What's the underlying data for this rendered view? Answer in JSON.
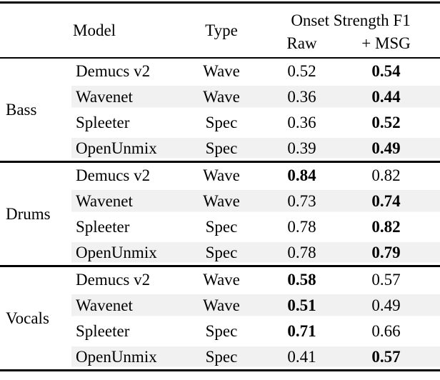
{
  "table": {
    "headers": {
      "model": "Model",
      "type": "Type",
      "group": "Onset Strength F1",
      "raw": "Raw",
      "msg": "+ MSG"
    },
    "sections": [
      {
        "label": "Bass",
        "rows": [
          {
            "model": "Demucs v2",
            "type": "Wave",
            "raw": "0.52",
            "raw_bold": false,
            "msg": "0.54",
            "msg_bold": true,
            "shaded": false
          },
          {
            "model": "Wavenet",
            "type": "Wave",
            "raw": "0.36",
            "raw_bold": false,
            "msg": "0.44",
            "msg_bold": true,
            "shaded": true
          },
          {
            "model": "Spleeter",
            "type": "Spec",
            "raw": "0.36",
            "raw_bold": false,
            "msg": "0.52",
            "msg_bold": true,
            "shaded": false
          },
          {
            "model": "OpenUnmix",
            "type": "Spec",
            "raw": "0.39",
            "raw_bold": false,
            "msg": "0.49",
            "msg_bold": true,
            "shaded": true
          }
        ]
      },
      {
        "label": "Drums",
        "rows": [
          {
            "model": "Demucs v2",
            "type": "Wave",
            "raw": "0.84",
            "raw_bold": true,
            "msg": "0.82",
            "msg_bold": false,
            "shaded": false
          },
          {
            "model": "Wavenet",
            "type": "Wave",
            "raw": "0.73",
            "raw_bold": false,
            "msg": "0.74",
            "msg_bold": true,
            "shaded": true
          },
          {
            "model": "Spleeter",
            "type": "Spec",
            "raw": "0.78",
            "raw_bold": false,
            "msg": "0.82",
            "msg_bold": true,
            "shaded": false
          },
          {
            "model": "OpenUnmix",
            "type": "Spec",
            "raw": "0.78",
            "raw_bold": false,
            "msg": "0.79",
            "msg_bold": true,
            "shaded": true
          }
        ]
      },
      {
        "label": "Vocals",
        "rows": [
          {
            "model": "Demucs v2",
            "type": "Wave",
            "raw": "0.58",
            "raw_bold": true,
            "msg": "0.57",
            "msg_bold": false,
            "shaded": false
          },
          {
            "model": "Wavenet",
            "type": "Wave",
            "raw": "0.51",
            "raw_bold": true,
            "msg": "0.49",
            "msg_bold": false,
            "shaded": true
          },
          {
            "model": "Spleeter",
            "type": "Spec",
            "raw": "0.71",
            "raw_bold": true,
            "msg": "0.66",
            "msg_bold": false,
            "shaded": false
          },
          {
            "model": "OpenUnmix",
            "type": "Spec",
            "raw": "0.41",
            "raw_bold": false,
            "msg": "0.57",
            "msg_bold": true,
            "shaded": true
          }
        ]
      }
    ]
  },
  "colors": {
    "row_shade": "#f1f1f1",
    "rule": "#000000",
    "text": "#000000"
  }
}
